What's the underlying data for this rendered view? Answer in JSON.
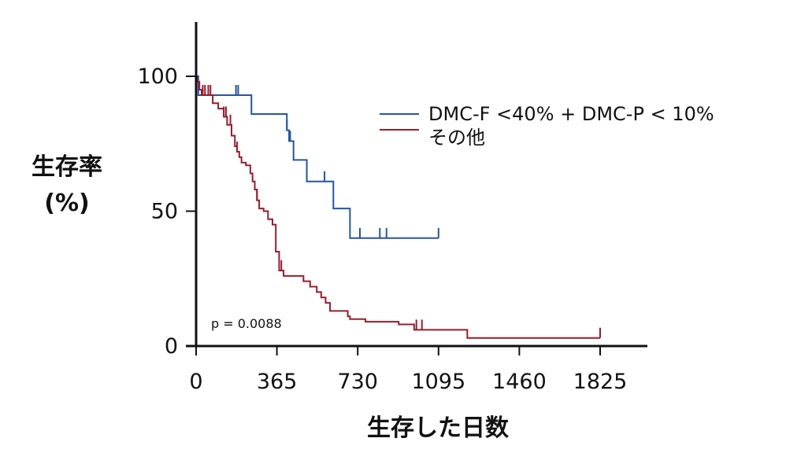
{
  "chart_data": {
    "type": "line",
    "title": "",
    "ylabel_lines": [
      "生存率",
      "(%)"
    ],
    "xlabel": "生存した日数",
    "xlim": [
      0,
      1825
    ],
    "ylim": [
      0,
      100
    ],
    "x_ticks": [
      0,
      365,
      730,
      1095,
      1460,
      1825
    ],
    "y_ticks": [
      0,
      50,
      100
    ],
    "legend_position": "top-right",
    "annotation": "p = 0.0088",
    "series": [
      {
        "name": "DMC-F <40% + DMC-P < 10%",
        "color": "#2356a8",
        "steps": [
          [
            0,
            100
          ],
          [
            10,
            93
          ],
          [
            250,
            86
          ],
          [
            410,
            80
          ],
          [
            420,
            76
          ],
          [
            440,
            69
          ],
          [
            500,
            61
          ],
          [
            620,
            51
          ],
          [
            695,
            40
          ],
          [
            1095,
            40
          ]
        ],
        "censor": [
          180,
          190,
          410,
          425,
          580,
          740,
          830,
          860,
          1095
        ]
      },
      {
        "name": "その他",
        "color": "#9b1c2e",
        "steps": [
          [
            0,
            100
          ],
          [
            5,
            98
          ],
          [
            15,
            95
          ],
          [
            25,
            93
          ],
          [
            75,
            90
          ],
          [
            100,
            88
          ],
          [
            125,
            85
          ],
          [
            140,
            82
          ],
          [
            160,
            78
          ],
          [
            175,
            74
          ],
          [
            185,
            72
          ],
          [
            195,
            70
          ],
          [
            205,
            68
          ],
          [
            225,
            67
          ],
          [
            245,
            64
          ],
          [
            255,
            61
          ],
          [
            265,
            58
          ],
          [
            275,
            54
          ],
          [
            285,
            51
          ],
          [
            305,
            50
          ],
          [
            325,
            47
          ],
          [
            345,
            45
          ],
          [
            360,
            35
          ],
          [
            375,
            28
          ],
          [
            395,
            26
          ],
          [
            485,
            24
          ],
          [
            515,
            22
          ],
          [
            545,
            20
          ],
          [
            565,
            18
          ],
          [
            585,
            16
          ],
          [
            605,
            13
          ],
          [
            685,
            11
          ],
          [
            695,
            10
          ],
          [
            765,
            9
          ],
          [
            915,
            8
          ],
          [
            985,
            6
          ],
          [
            1225,
            3
          ],
          [
            1825,
            3
          ]
        ],
        "censor": [
          30,
          40,
          55,
          65,
          125,
          135,
          155,
          185,
          275,
          385,
          995,
          1020,
          1825
        ]
      }
    ]
  }
}
